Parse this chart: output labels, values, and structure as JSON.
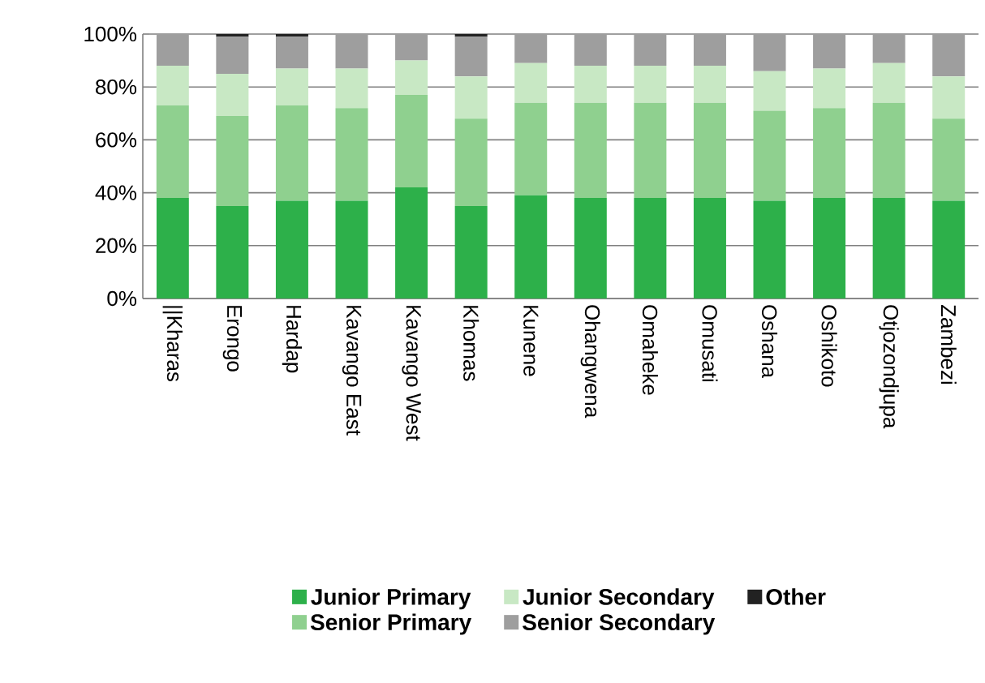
{
  "chart_data": {
    "type": "bar",
    "stacked": true,
    "categories": [
      "||Kharas",
      "Erongo",
      "Hardap",
      "Kavango East",
      "Kavango West",
      "Khomas",
      "Kunene",
      "Ohangwena",
      "Omaheke",
      "Omusati",
      "Oshana",
      "Oshikoto",
      "Otjozondjupa",
      "Zambezi"
    ],
    "series": [
      {
        "name": "Junior Primary",
        "color": "#2db04a",
        "values": [
          38,
          35,
          37,
          37,
          42,
          35,
          39,
          38,
          38,
          38,
          37,
          38,
          38,
          37
        ]
      },
      {
        "name": "Senior Primary",
        "color": "#8fd08f",
        "values": [
          35,
          34,
          36,
          35,
          35,
          33,
          35,
          36,
          36,
          36,
          34,
          34,
          36,
          31
        ]
      },
      {
        "name": "Junior Secondary",
        "color": "#c8e8c4",
        "values": [
          15,
          16,
          14,
          15,
          13,
          16,
          15,
          14,
          14,
          14,
          15,
          15,
          15,
          16
        ]
      },
      {
        "name": "Senior Secondary",
        "color": "#9e9e9e",
        "values": [
          12,
          14,
          12,
          13,
          10,
          15,
          11,
          12,
          12,
          12,
          14,
          13,
          11,
          16
        ]
      },
      {
        "name": "Other",
        "color": "#222222",
        "values": [
          0,
          1,
          1,
          0,
          0,
          1,
          0,
          0,
          0,
          0,
          0,
          0,
          0,
          0
        ]
      }
    ],
    "ylim": [
      0,
      100
    ],
    "yticks": [
      {
        "value": 0,
        "label": "0%"
      },
      {
        "value": 20,
        "label": "20%"
      },
      {
        "value": 40,
        "label": "40%"
      },
      {
        "value": 60,
        "label": "60%"
      },
      {
        "value": 80,
        "label": "80%"
      },
      {
        "value": 100,
        "label": "100%"
      }
    ],
    "grid": "y",
    "legend": "bottom"
  }
}
